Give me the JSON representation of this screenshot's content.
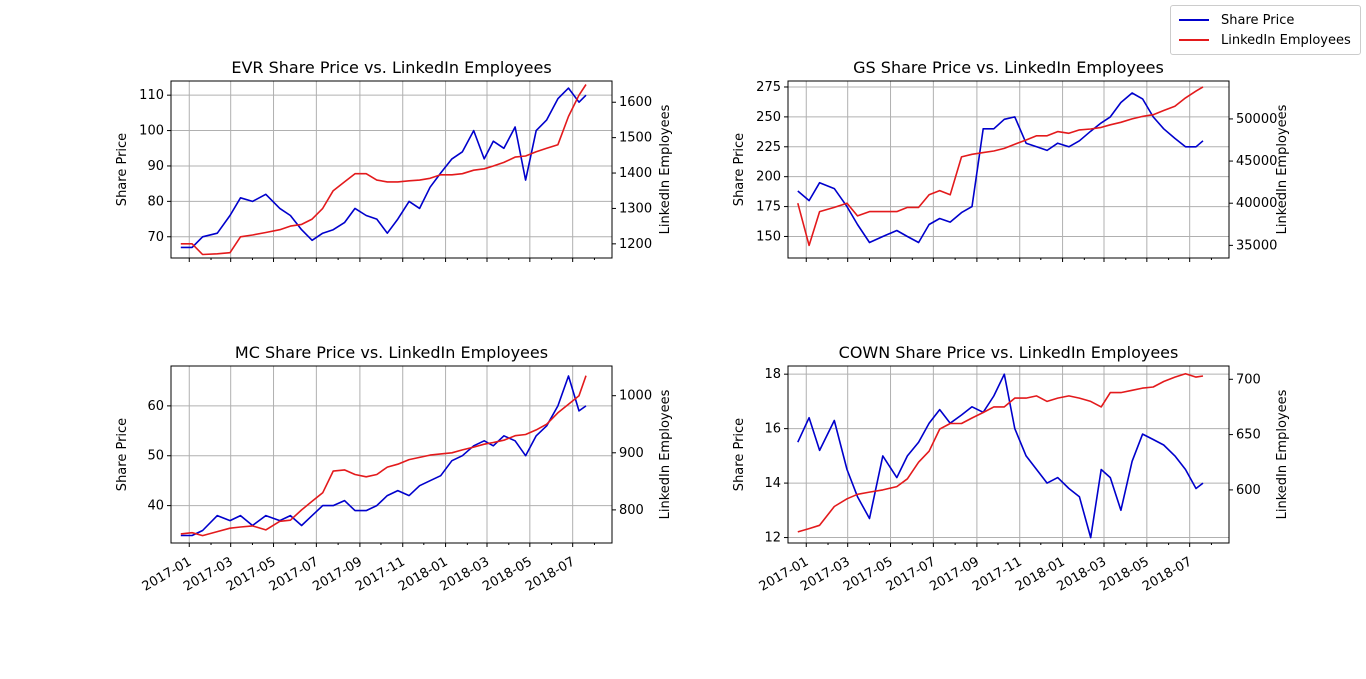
{
  "figure": {
    "legend": {
      "placement": "top-right",
      "entries": [
        {
          "label": "Share Price",
          "color": "#0000cc"
        },
        {
          "label": "LinkedIn Employees",
          "color": "#e31a1c"
        }
      ]
    },
    "x_tick_labels": [
      "2017-01",
      "2017-03",
      "2017-05",
      "2017-07",
      "2017-09",
      "2017-11",
      "2018-01",
      "2018-03",
      "2018-05",
      "2018-07"
    ]
  },
  "chart_data": [
    {
      "type": "line",
      "title": "EVR Share Price vs. LinkedIn Employees",
      "xlabel": "",
      "ylabel": "Share Price",
      "y2label": "LinkedIn Employees",
      "grid": true,
      "show_x_tick_labels": false,
      "xlim": [
        "2016-12-06",
        "2018-08-26"
      ],
      "ylim": [
        64,
        114
      ],
      "y2lim": [
        1160,
        1660
      ],
      "yticks": [
        70,
        80,
        90,
        100,
        110
      ],
      "y2ticks": [
        1200,
        1300,
        1400,
        1500,
        1600
      ],
      "series": [
        {
          "name": "Share Price",
          "axis": "left",
          "color": "#0000cc",
          "x": [
            "2016-12-20",
            "2017-01-05",
            "2017-01-20",
            "2017-02-10",
            "2017-02-28",
            "2017-03-15",
            "2017-04-01",
            "2017-04-20",
            "2017-05-10",
            "2017-05-25",
            "2017-06-10",
            "2017-06-25",
            "2017-07-10",
            "2017-07-25",
            "2017-08-10",
            "2017-08-25",
            "2017-09-10",
            "2017-09-25",
            "2017-10-10",
            "2017-10-25",
            "2017-11-10",
            "2017-11-25",
            "2017-12-10",
            "2017-12-25",
            "2018-01-10",
            "2018-01-25",
            "2018-02-10",
            "2018-02-25",
            "2018-03-10",
            "2018-03-25",
            "2018-04-10",
            "2018-04-25",
            "2018-05-10",
            "2018-05-25",
            "2018-06-10",
            "2018-06-25",
            "2018-07-10",
            "2018-07-20"
          ],
          "y": [
            67,
            67,
            70,
            71,
            76,
            81,
            80,
            82,
            78,
            76,
            72,
            69,
            71,
            72,
            74,
            78,
            76,
            75,
            71,
            75,
            80,
            78,
            84,
            88,
            92,
            94,
            100,
            92,
            97,
            95,
            101,
            86,
            100,
            103,
            109,
            112,
            108,
            110
          ]
        },
        {
          "name": "LinkedIn Employees",
          "axis": "right",
          "color": "#e31a1c",
          "x": [
            "2016-12-20",
            "2017-01-05",
            "2017-01-20",
            "2017-02-10",
            "2017-02-28",
            "2017-03-15",
            "2017-04-01",
            "2017-04-20",
            "2017-05-10",
            "2017-05-25",
            "2017-06-10",
            "2017-06-25",
            "2017-07-10",
            "2017-07-25",
            "2017-08-10",
            "2017-08-25",
            "2017-09-10",
            "2017-09-25",
            "2017-10-10",
            "2017-10-25",
            "2017-11-10",
            "2017-11-25",
            "2017-12-10",
            "2017-12-25",
            "2018-01-10",
            "2018-01-25",
            "2018-02-10",
            "2018-02-25",
            "2018-03-10",
            "2018-03-25",
            "2018-04-10",
            "2018-04-25",
            "2018-05-10",
            "2018-05-25",
            "2018-06-10",
            "2018-06-25",
            "2018-07-10",
            "2018-07-20"
          ],
          "y": [
            1200,
            1200,
            1170,
            1172,
            1175,
            1220,
            1225,
            1232,
            1240,
            1250,
            1255,
            1270,
            1300,
            1350,
            1375,
            1398,
            1398,
            1380,
            1375,
            1375,
            1378,
            1380,
            1385,
            1395,
            1395,
            1398,
            1408,
            1412,
            1420,
            1430,
            1445,
            1448,
            1460,
            1470,
            1480,
            1560,
            1620,
            1650
          ]
        }
      ]
    },
    {
      "type": "line",
      "title": "GS Share Price vs. LinkedIn Employees",
      "xlabel": "",
      "ylabel": "Share Price",
      "y2label": "LinkedIn Employees",
      "grid": true,
      "show_x_tick_labels": false,
      "xlim": [
        "2016-12-06",
        "2018-08-26"
      ],
      "ylim": [
        132,
        280
      ],
      "y2lim": [
        33500,
        54500
      ],
      "yticks": [
        150,
        175,
        200,
        225,
        250,
        275
      ],
      "y2ticks": [
        35000,
        40000,
        45000,
        50000
      ],
      "series": [
        {
          "name": "Share Price",
          "axis": "left",
          "color": "#0000cc",
          "x": [
            "2016-12-20",
            "2017-01-05",
            "2017-01-20",
            "2017-02-10",
            "2017-02-28",
            "2017-03-15",
            "2017-04-01",
            "2017-04-20",
            "2017-05-10",
            "2017-05-25",
            "2017-06-10",
            "2017-06-25",
            "2017-07-10",
            "2017-07-25",
            "2017-08-10",
            "2017-08-25",
            "2017-09-10",
            "2017-09-25",
            "2017-10-10",
            "2017-10-25",
            "2017-11-10",
            "2017-11-25",
            "2017-12-10",
            "2017-12-25",
            "2018-01-10",
            "2018-01-25",
            "2018-02-10",
            "2018-02-25",
            "2018-03-10",
            "2018-03-25",
            "2018-04-10",
            "2018-04-25",
            "2018-05-10",
            "2018-05-25",
            "2018-06-10",
            "2018-06-25",
            "2018-07-10",
            "2018-07-20"
          ],
          "y": [
            188,
            180,
            195,
            190,
            175,
            160,
            145,
            150,
            155,
            150,
            145,
            160,
            165,
            162,
            170,
            175,
            240,
            240,
            248,
            250,
            228,
            225,
            222,
            228,
            225,
            230,
            238,
            245,
            250,
            262,
            270,
            265,
            250,
            240,
            232,
            225,
            225,
            230
          ]
        },
        {
          "name": "LinkedIn Employees",
          "axis": "right",
          "color": "#e31a1c",
          "x": [
            "2016-12-20",
            "2017-01-05",
            "2017-01-20",
            "2017-02-10",
            "2017-02-28",
            "2017-03-15",
            "2017-04-01",
            "2017-04-20",
            "2017-05-10",
            "2017-05-25",
            "2017-06-10",
            "2017-06-25",
            "2017-07-10",
            "2017-07-25",
            "2017-08-10",
            "2017-08-25",
            "2017-09-10",
            "2017-09-25",
            "2017-10-10",
            "2017-10-25",
            "2017-11-10",
            "2017-11-25",
            "2017-12-10",
            "2017-12-25",
            "2018-01-10",
            "2018-01-25",
            "2018-02-10",
            "2018-02-25",
            "2018-03-10",
            "2018-03-25",
            "2018-04-10",
            "2018-04-25",
            "2018-05-10",
            "2018-05-25",
            "2018-06-10",
            "2018-06-25",
            "2018-07-10",
            "2018-07-20"
          ],
          "y": [
            40000,
            35000,
            39000,
            39500,
            40000,
            38500,
            39000,
            39000,
            39000,
            39500,
            39500,
            41000,
            41500,
            41000,
            45500,
            45800,
            46000,
            46200,
            46500,
            47000,
            47500,
            48000,
            48000,
            48500,
            48300,
            48700,
            48800,
            49000,
            49300,
            49600,
            50000,
            50300,
            50500,
            51000,
            51500,
            52500,
            53300,
            53800
          ]
        }
      ]
    },
    {
      "type": "line",
      "title": "MC Share Price vs. LinkedIn Employees",
      "xlabel": "",
      "ylabel": "Share Price",
      "y2label": "LinkedIn Employees",
      "grid": true,
      "show_x_tick_labels": true,
      "xlim": [
        "2016-12-06",
        "2018-08-26"
      ],
      "ylim": [
        32.5,
        68
      ],
      "y2lim": [
        742,
        1052
      ],
      "yticks": [
        40,
        50,
        60
      ],
      "y2ticks": [
        800,
        900,
        1000
      ],
      "series": [
        {
          "name": "Share Price",
          "axis": "left",
          "color": "#0000cc",
          "x": [
            "2016-12-20",
            "2017-01-05",
            "2017-01-20",
            "2017-02-10",
            "2017-02-28",
            "2017-03-15",
            "2017-04-01",
            "2017-04-20",
            "2017-05-10",
            "2017-05-25",
            "2017-06-10",
            "2017-06-25",
            "2017-07-10",
            "2017-07-25",
            "2017-08-10",
            "2017-08-25",
            "2017-09-10",
            "2017-09-25",
            "2017-10-10",
            "2017-10-25",
            "2017-11-10",
            "2017-11-25",
            "2017-12-10",
            "2017-12-25",
            "2018-01-10",
            "2018-01-25",
            "2018-02-10",
            "2018-02-25",
            "2018-03-10",
            "2018-03-25",
            "2018-04-10",
            "2018-04-25",
            "2018-05-10",
            "2018-05-25",
            "2018-06-10",
            "2018-06-25",
            "2018-07-10",
            "2018-07-20"
          ],
          "y": [
            34,
            34,
            35,
            38,
            37,
            38,
            36,
            38,
            37,
            38,
            36,
            38,
            40,
            40,
            41,
            39,
            39,
            40,
            42,
            43,
            42,
            44,
            45,
            46,
            49,
            50,
            52,
            53,
            52,
            54,
            53,
            50,
            54,
            56,
            60,
            66,
            59,
            60
          ]
        },
        {
          "name": "LinkedIn Employees",
          "axis": "right",
          "color": "#e31a1c",
          "x": [
            "2016-12-20",
            "2017-01-05",
            "2017-01-20",
            "2017-02-10",
            "2017-02-28",
            "2017-03-15",
            "2017-04-01",
            "2017-04-20",
            "2017-05-10",
            "2017-05-25",
            "2017-06-10",
            "2017-06-25",
            "2017-07-10",
            "2017-07-25",
            "2017-08-10",
            "2017-08-25",
            "2017-09-10",
            "2017-09-25",
            "2017-10-10",
            "2017-10-25",
            "2017-11-10",
            "2017-11-25",
            "2017-12-10",
            "2017-12-25",
            "2018-01-10",
            "2018-01-25",
            "2018-02-10",
            "2018-02-25",
            "2018-03-10",
            "2018-03-25",
            "2018-04-10",
            "2018-04-25",
            "2018-05-10",
            "2018-05-25",
            "2018-06-10",
            "2018-06-25",
            "2018-07-10",
            "2018-07-20"
          ],
          "y": [
            758,
            760,
            755,
            762,
            768,
            770,
            772,
            765,
            780,
            782,
            800,
            815,
            830,
            868,
            870,
            862,
            858,
            862,
            875,
            880,
            888,
            892,
            896,
            898,
            900,
            905,
            910,
            915,
            918,
            922,
            930,
            932,
            940,
            950,
            970,
            985,
            1000,
            1035
          ]
        }
      ]
    },
    {
      "type": "line",
      "title": "COWN Share Price vs. LinkedIn Employees",
      "xlabel": "",
      "ylabel": "Share Price",
      "y2label": "LinkedIn Employees",
      "grid": true,
      "show_x_tick_labels": true,
      "xlim": [
        "2016-12-06",
        "2018-08-26"
      ],
      "ylim": [
        11.8,
        18.3
      ],
      "y2lim": [
        552,
        712
      ],
      "yticks": [
        12,
        14,
        16,
        18
      ],
      "y2ticks": [
        600,
        650,
        700
      ],
      "series": [
        {
          "name": "Share Price",
          "axis": "left",
          "color": "#0000cc",
          "x": [
            "2016-12-20",
            "2017-01-05",
            "2017-01-20",
            "2017-02-10",
            "2017-02-28",
            "2017-03-15",
            "2017-04-01",
            "2017-04-20",
            "2017-05-10",
            "2017-05-25",
            "2017-06-10",
            "2017-06-25",
            "2017-07-10",
            "2017-07-25",
            "2017-08-10",
            "2017-08-25",
            "2017-09-10",
            "2017-09-25",
            "2017-10-10",
            "2017-10-25",
            "2017-11-10",
            "2017-11-25",
            "2017-12-10",
            "2017-12-25",
            "2018-01-10",
            "2018-01-25",
            "2018-02-10",
            "2018-02-25",
            "2018-03-10",
            "2018-03-25",
            "2018-04-10",
            "2018-04-25",
            "2018-05-10",
            "2018-05-25",
            "2018-06-10",
            "2018-06-25",
            "2018-07-10",
            "2018-07-20"
          ],
          "y": [
            15.5,
            16.4,
            15.2,
            16.3,
            14.5,
            13.5,
            12.7,
            15.0,
            14.2,
            15.0,
            15.5,
            16.2,
            16.7,
            16.2,
            16.5,
            16.8,
            16.6,
            17.2,
            18.0,
            16.0,
            15.0,
            14.5,
            14.0,
            14.2,
            13.8,
            13.5,
            12.0,
            14.5,
            14.2,
            13.0,
            14.8,
            15.8,
            15.6,
            15.4,
            15.0,
            14.5,
            13.8,
            14.0
          ]
        },
        {
          "name": "LinkedIn Employees",
          "axis": "right",
          "color": "#e31a1c",
          "x": [
            "2016-12-20",
            "2017-01-05",
            "2017-01-20",
            "2017-02-10",
            "2017-02-28",
            "2017-03-15",
            "2017-04-01",
            "2017-04-20",
            "2017-05-10",
            "2017-05-25",
            "2017-06-10",
            "2017-06-25",
            "2017-07-10",
            "2017-07-25",
            "2017-08-10",
            "2017-08-25",
            "2017-09-10",
            "2017-09-25",
            "2017-10-10",
            "2017-10-25",
            "2017-11-10",
            "2017-11-25",
            "2017-12-10",
            "2017-12-25",
            "2018-01-10",
            "2018-01-25",
            "2018-02-10",
            "2018-02-25",
            "2018-03-10",
            "2018-03-25",
            "2018-04-10",
            "2018-04-25",
            "2018-05-10",
            "2018-05-25",
            "2018-06-10",
            "2018-06-25",
            "2018-07-10",
            "2018-07-20"
          ],
          "y": [
            562,
            565,
            568,
            585,
            592,
            596,
            598,
            600,
            603,
            610,
            625,
            635,
            655,
            660,
            660,
            665,
            670,
            675,
            675,
            683,
            683,
            685,
            680,
            683,
            685,
            683,
            680,
            675,
            688,
            688,
            690,
            692,
            693,
            698,
            702,
            705,
            702,
            703
          ]
        }
      ]
    }
  ]
}
